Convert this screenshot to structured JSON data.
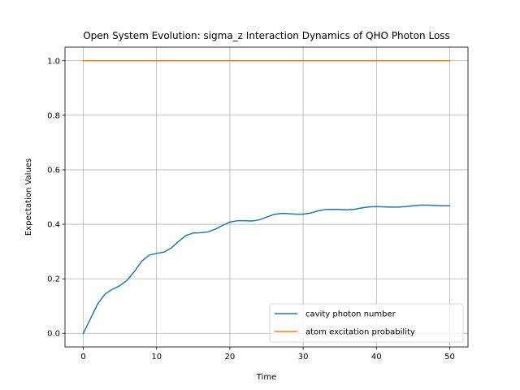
{
  "chart_data": {
    "type": "line",
    "title": "Open System Evolution: sigma_z Interaction Dynamics of QHO Photon Loss",
    "xlabel": "Time",
    "ylabel": "Expectation Values",
    "xlim": [
      -2.5,
      52.5
    ],
    "ylim": [
      -0.05,
      1.05
    ],
    "xticks": [
      0,
      10,
      20,
      30,
      40,
      50
    ],
    "yticks": [
      0.0,
      0.2,
      0.4,
      0.6,
      0.8,
      1.0
    ],
    "xtick_labels": [
      "0",
      "10",
      "20",
      "30",
      "40",
      "50"
    ],
    "ytick_labels": [
      "0.0",
      "0.2",
      "0.4",
      "0.6",
      "0.8",
      "1.0"
    ],
    "grid": true,
    "legend_position": "lower-right",
    "series": [
      {
        "name": "cavity photon number",
        "color": "#1f77b4",
        "x": [
          0,
          1,
          2,
          3,
          4,
          5,
          6,
          7,
          8,
          9,
          10,
          11,
          12,
          13,
          14,
          15,
          16,
          17,
          18,
          19,
          20,
          21,
          22,
          23,
          24,
          25,
          26,
          27,
          28,
          29,
          30,
          31,
          32,
          33,
          34,
          35,
          36,
          37,
          38,
          39,
          40,
          41,
          42,
          43,
          44,
          45,
          46,
          47,
          48,
          49,
          50
        ],
        "y": [
          0.0,
          0.055,
          0.11,
          0.145,
          0.162,
          0.175,
          0.195,
          0.228,
          0.265,
          0.287,
          0.293,
          0.298,
          0.313,
          0.337,
          0.359,
          0.368,
          0.369,
          0.372,
          0.382,
          0.396,
          0.408,
          0.413,
          0.413,
          0.412,
          0.416,
          0.426,
          0.436,
          0.44,
          0.439,
          0.437,
          0.437,
          0.441,
          0.449,
          0.454,
          0.455,
          0.454,
          0.453,
          0.455,
          0.46,
          0.464,
          0.465,
          0.464,
          0.463,
          0.463,
          0.465,
          0.468,
          0.47,
          0.47,
          0.469,
          0.468,
          0.468
        ]
      },
      {
        "name": "atom excitation probability",
        "color": "#ff7f0e",
        "x": [
          0,
          50
        ],
        "y": [
          1.0,
          1.0
        ]
      }
    ]
  }
}
